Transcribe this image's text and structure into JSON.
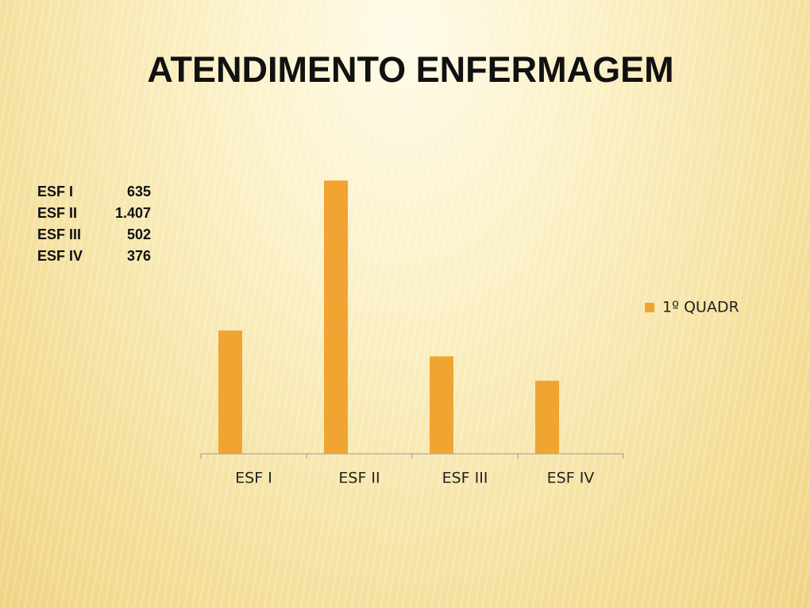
{
  "chart_data": {
    "type": "bar",
    "title": "ATENDIMENTO ENFERMAGEM",
    "categories": [
      "ESF I",
      "ESF II",
      "ESF III",
      "ESF IV"
    ],
    "series": [
      {
        "name": "1º QUADR",
        "color": "#f0a432",
        "values": [
          635,
          1407,
          502,
          376
        ],
        "value_labels": [
          "635",
          "1.407",
          "502",
          "376"
        ]
      }
    ],
    "ylim": [
      0,
      1600
    ],
    "legend": "right"
  }
}
